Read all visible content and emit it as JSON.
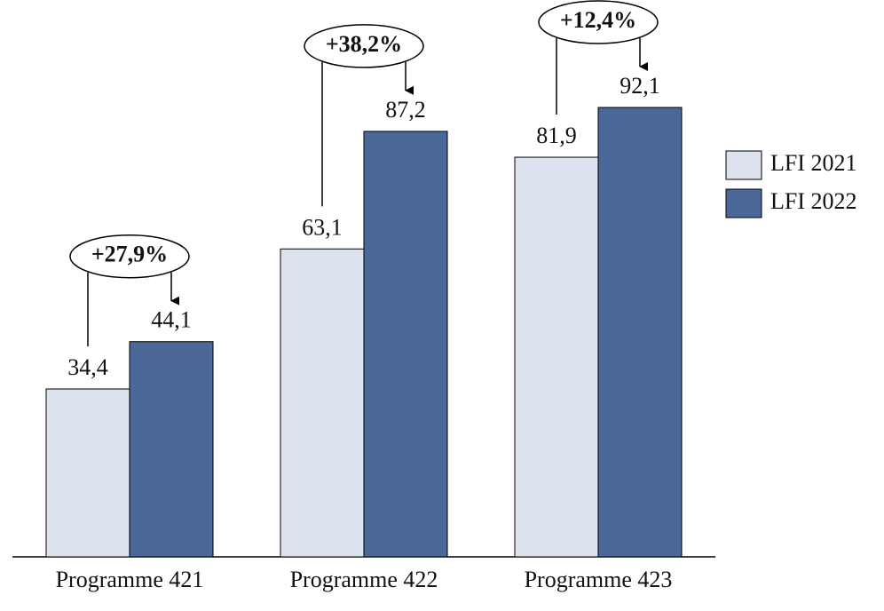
{
  "chart_data": {
    "type": "bar",
    "categories": [
      "Programme 421",
      "Programme 422",
      "Programme 423"
    ],
    "series": [
      {
        "name": "LFI 2021",
        "color": "#dde3ee",
        "values": [
          34.4,
          63.1,
          81.9
        ],
        "value_labels": [
          "34,4",
          "63,1",
          "81,9"
        ]
      },
      {
        "name": "LFI 2022",
        "color": "#4a6898",
        "values": [
          44.1,
          87.2,
          92.1
        ],
        "value_labels": [
          "44,1",
          "87,2",
          "92,1"
        ]
      }
    ],
    "annotations": [
      "+27,9%",
      "+38,2%",
      "+12,4%"
    ],
    "legend": "right"
  }
}
